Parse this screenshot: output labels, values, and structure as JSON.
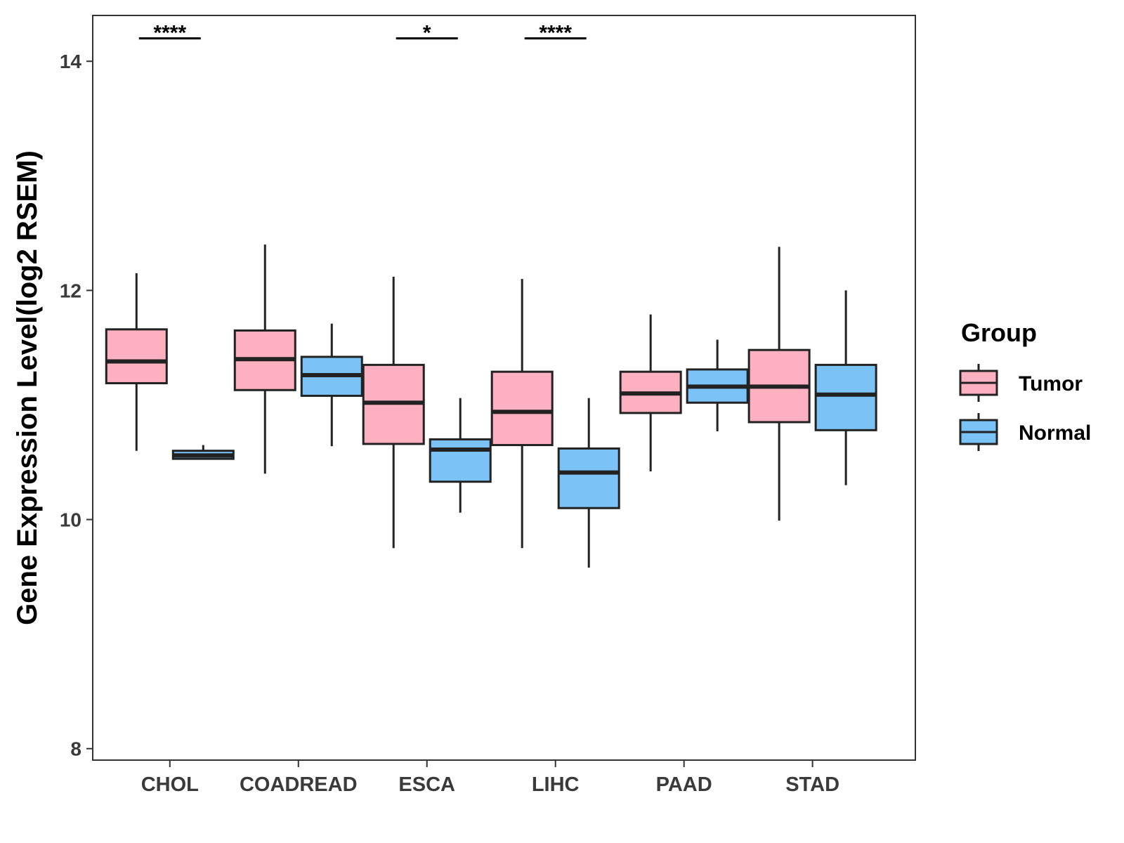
{
  "chart_data": {
    "type": "boxplot",
    "ylabel": "Gene Expression Level(log2 RSEM)",
    "xlabel": "",
    "ylim": [
      7.9,
      14.4
    ],
    "yticks": [
      8,
      10,
      12,
      14
    ],
    "categories": [
      "CHOL",
      "COADREAD",
      "ESCA",
      "LIHC",
      "PAAD",
      "STAD"
    ],
    "legend": {
      "title": "Group",
      "position": "right",
      "entries": [
        {
          "name": "Tumor",
          "color": "#FDB0C0"
        },
        {
          "name": "Normal",
          "color": "#7BC3F7"
        }
      ]
    },
    "series": [
      {
        "name": "Tumor",
        "color": "#FDB0C0",
        "boxes": [
          {
            "category": "CHOL",
            "whisker_low": 10.6,
            "q1": 11.19,
            "median": 11.38,
            "q3": 11.66,
            "whisker_high": 12.15
          },
          {
            "category": "COADREAD",
            "whisker_low": 10.4,
            "q1": 11.13,
            "median": 11.4,
            "q3": 11.65,
            "whisker_high": 12.4
          },
          {
            "category": "ESCA",
            "whisker_low": 9.75,
            "q1": 10.66,
            "median": 11.02,
            "q3": 11.35,
            "whisker_high": 12.12
          },
          {
            "category": "LIHC",
            "whisker_low": 9.75,
            "q1": 10.65,
            "median": 10.94,
            "q3": 11.29,
            "whisker_high": 12.1
          },
          {
            "category": "PAAD",
            "whisker_low": 10.42,
            "q1": 10.93,
            "median": 11.1,
            "q3": 11.29,
            "whisker_high": 11.79
          },
          {
            "category": "STAD",
            "whisker_low": 9.99,
            "q1": 10.85,
            "median": 11.16,
            "q3": 11.48,
            "whisker_high": 12.38
          }
        ]
      },
      {
        "name": "Normal",
        "color": "#7BC3F7",
        "boxes": [
          {
            "category": "CHOL",
            "whisker_low": 10.53,
            "q1": 10.53,
            "median": 10.56,
            "q3": 10.6,
            "whisker_high": 10.65
          },
          {
            "category": "COADREAD",
            "whisker_low": 10.64,
            "q1": 11.08,
            "median": 11.26,
            "q3": 11.42,
            "whisker_high": 11.71
          },
          {
            "category": "ESCA",
            "whisker_low": 10.06,
            "q1": 10.33,
            "median": 10.61,
            "q3": 10.7,
            "whisker_high": 11.06
          },
          {
            "category": "LIHC",
            "whisker_low": 9.58,
            "q1": 10.1,
            "median": 10.41,
            "q3": 10.62,
            "whisker_high": 11.06
          },
          {
            "category": "PAAD",
            "whisker_low": 10.77,
            "q1": 11.02,
            "median": 11.16,
            "q3": 11.31,
            "whisker_high": 11.57
          },
          {
            "category": "STAD",
            "whisker_low": 10.3,
            "q1": 10.78,
            "median": 11.09,
            "q3": 11.35,
            "whisker_high": 12.0
          }
        ]
      }
    ],
    "annotations": [
      {
        "category": "CHOL",
        "label": "****"
      },
      {
        "category": "ESCA",
        "label": "*"
      },
      {
        "category": "LIHC",
        "label": "****"
      }
    ],
    "grid": false
  }
}
